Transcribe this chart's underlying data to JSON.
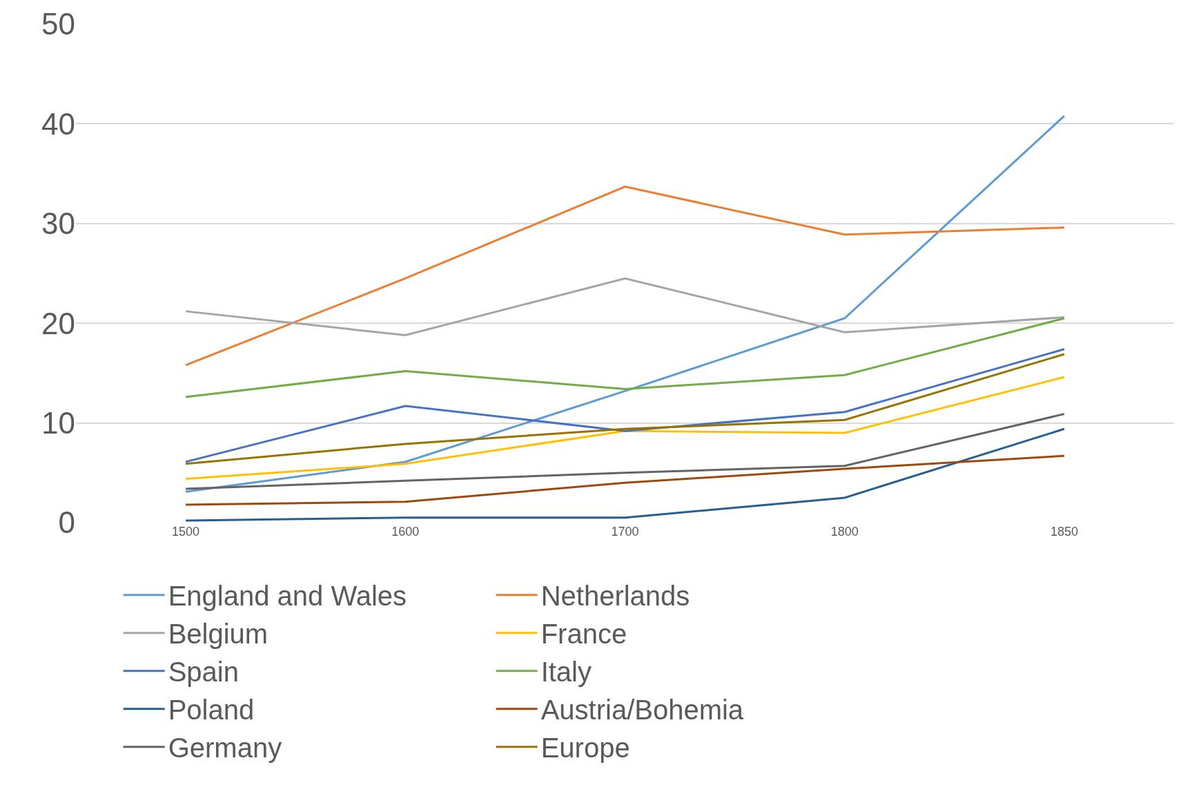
{
  "chart_data": {
    "type": "line",
    "categories": [
      "1500",
      "1600",
      "1700",
      "1800",
      "1850"
    ],
    "ylim": [
      0,
      50
    ],
    "yticks": [
      0,
      10,
      20,
      30,
      40,
      50
    ],
    "grid": "y",
    "legend": "bottom",
    "marker": "none",
    "line_style": "solid",
    "series": [
      {
        "name": "England and Wales",
        "color": "#5b9bd5",
        "values": [
          3.1,
          6.1,
          13.2,
          20.5,
          40.8
        ]
      },
      {
        "name": "Netherlands",
        "color": "#ed7d31",
        "values": [
          15.8,
          24.5,
          33.7,
          28.9,
          29.6
        ]
      },
      {
        "name": "Belgium",
        "color": "#a5a5a5",
        "values": [
          21.2,
          18.8,
          24.5,
          19.1,
          20.6
        ]
      },
      {
        "name": "France",
        "color": "#ffc000",
        "values": [
          4.4,
          5.9,
          9.2,
          9.0,
          14.6
        ]
      },
      {
        "name": "Spain",
        "color": "#4472c4",
        "values": [
          6.1,
          11.7,
          9.2,
          11.1,
          17.4
        ]
      },
      {
        "name": "Italy",
        "color": "#70ad47",
        "values": [
          12.6,
          15.2,
          13.4,
          14.8,
          20.5
        ]
      },
      {
        "name": "Poland",
        "color": "#255e91",
        "values": [
          0.2,
          0.5,
          0.5,
          2.5,
          9.4
        ]
      },
      {
        "name": "Austria/Bohemia",
        "color": "#9e480e",
        "values": [
          1.8,
          2.1,
          4.0,
          5.4,
          6.7
        ]
      },
      {
        "name": "Germany",
        "color": "#636363",
        "values": [
          3.4,
          4.2,
          5.0,
          5.7,
          10.9
        ]
      },
      {
        "name": "Europe",
        "color": "#997300",
        "values": [
          5.9,
          7.9,
          9.4,
          10.3,
          16.9
        ]
      }
    ]
  }
}
